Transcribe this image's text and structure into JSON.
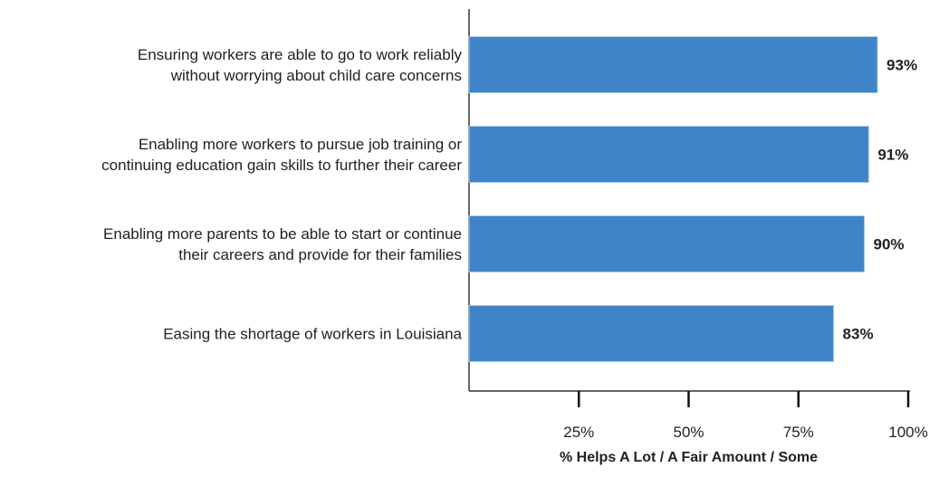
{
  "chart_data": {
    "type": "barh",
    "categories": [
      "Ensuring workers are able to go to work reliably\nwithout worrying about child care concerns",
      "Enabling more workers to pursue job training or\ncontinuing education gain skills to further their career",
      "Enabling more parents to be able to start or continue\ntheir careers and provide for their families",
      "Easing the shortage of workers in Louisiana"
    ],
    "values": [
      93,
      91,
      90,
      83
    ],
    "value_labels": [
      "93%",
      "91%",
      "90%",
      "83%"
    ],
    "color": "#3f84c8",
    "xlim": [
      0,
      100
    ],
    "xticks": [
      {
        "value": 25,
        "label": "25%"
      },
      {
        "value": 50,
        "label": "50%"
      },
      {
        "value": 75,
        "label": "75%"
      },
      {
        "value": 100,
        "label": "100%"
      }
    ],
    "x_label": "% Helps A Lot / A Fair Amount / Some"
  }
}
